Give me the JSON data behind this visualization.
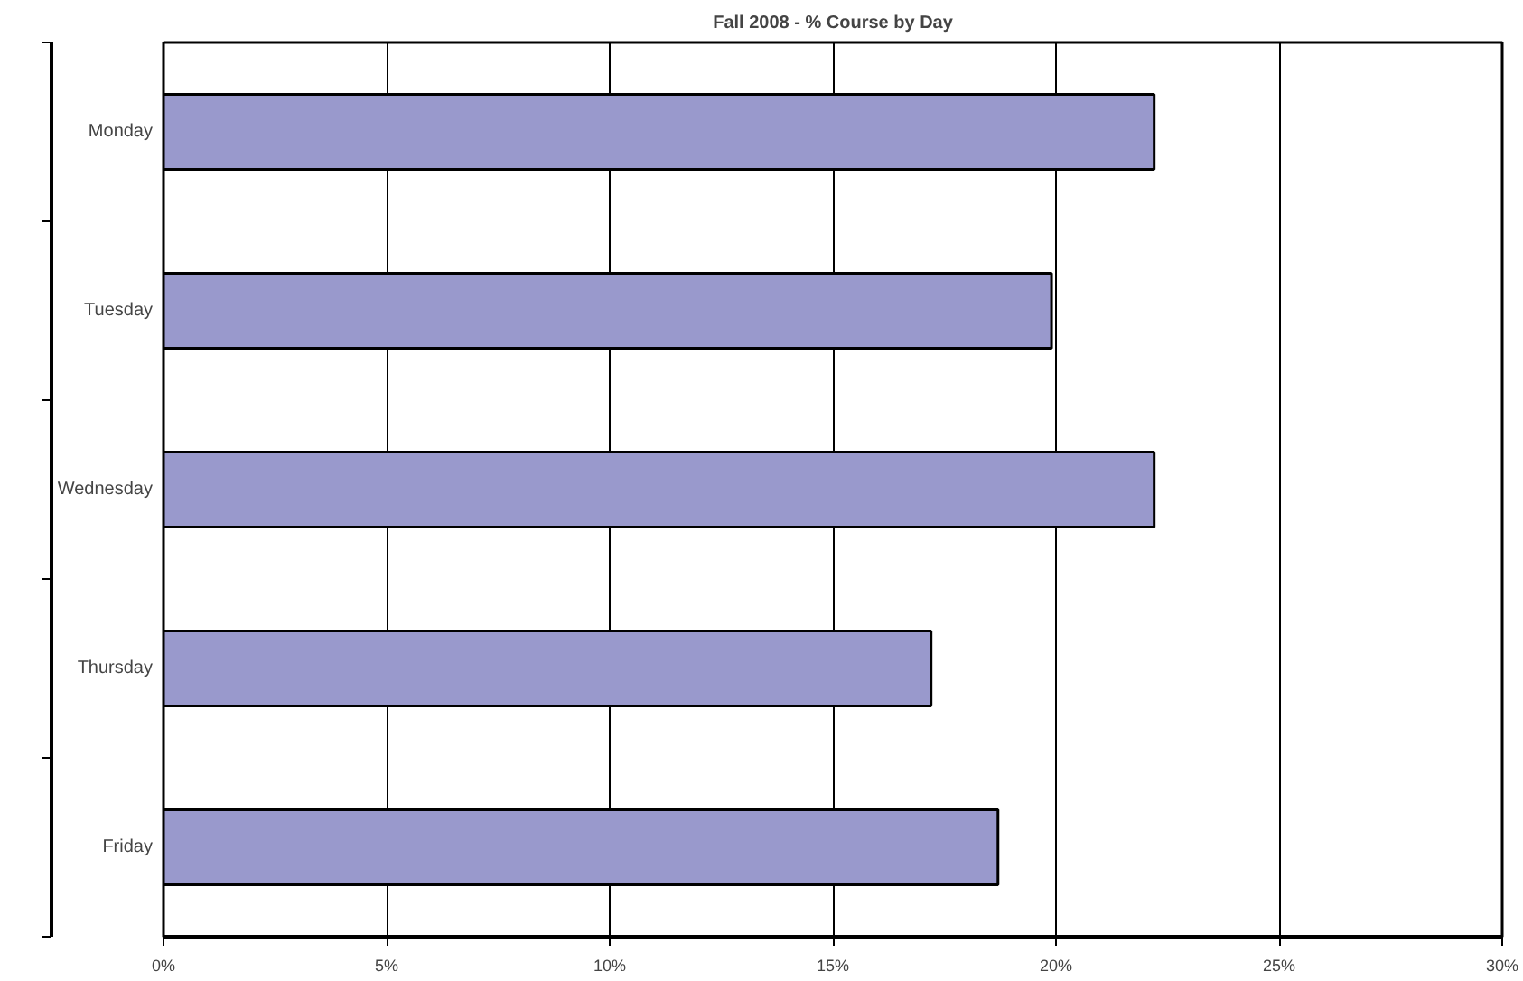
{
  "chart_data": {
    "type": "bar",
    "orientation": "horizontal",
    "title": "Fall 2008 - % Course by Day",
    "categories": [
      "Monday",
      "Tuesday",
      "Wednesday",
      "Thursday",
      "Friday"
    ],
    "values": [
      22.2,
      19.9,
      22.2,
      17.2,
      18.7
    ],
    "color": "#9999cc",
    "xlim": [
      0,
      30
    ],
    "xticks": [
      {
        "value": 0,
        "label": "0%"
      },
      {
        "value": 5,
        "label": "5%"
      },
      {
        "value": 10,
        "label": "10%"
      },
      {
        "value": 15,
        "label": "15%"
      },
      {
        "value": 20,
        "label": "20%"
      },
      {
        "value": 25,
        "label": "25%"
      },
      {
        "value": 30,
        "label": "30%"
      }
    ],
    "grid": "x"
  }
}
